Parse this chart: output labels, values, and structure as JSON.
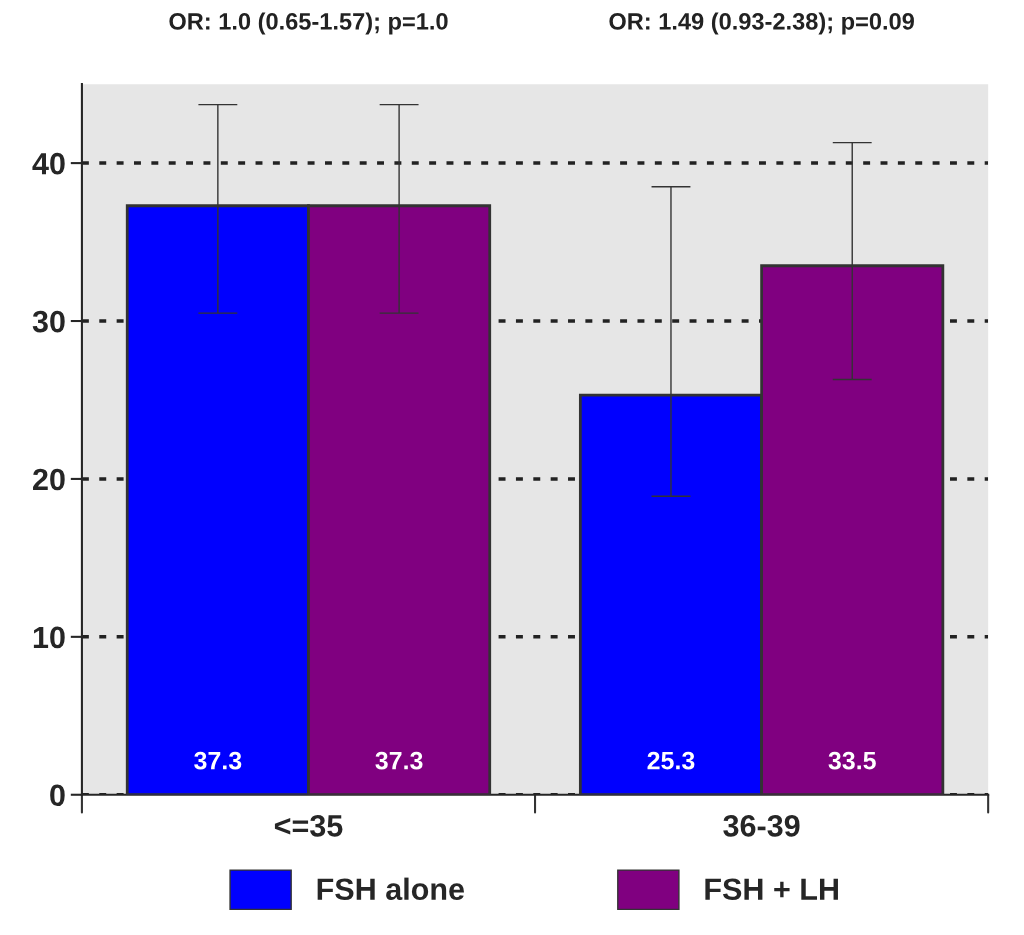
{
  "chart_data": {
    "type": "bar",
    "categories": [
      "<=35",
      "36-39"
    ],
    "series": [
      {
        "name": "FSH alone",
        "color": "#0000ff",
        "values": [
          37.3,
          25.3
        ],
        "errors": [
          [
            30.5,
            43.7
          ],
          [
            18.9,
            38.5
          ]
        ]
      },
      {
        "name": "FSH + LH",
        "color": "#800080",
        "values": [
          37.3,
          33.5
        ],
        "errors": [
          [
            30.5,
            43.7
          ],
          [
            26.3,
            41.3
          ]
        ]
      }
    ],
    "ylim": [
      0,
      45
    ],
    "yticks": [
      0,
      10,
      20,
      30,
      40
    ],
    "grid": "y",
    "legend": "bottom",
    "data_labels": true,
    "annotations": [
      "OR: 1.0 (0.65-1.57); p=1.0",
      "OR: 1.49 (0.93-2.38); p=0.09"
    ]
  }
}
